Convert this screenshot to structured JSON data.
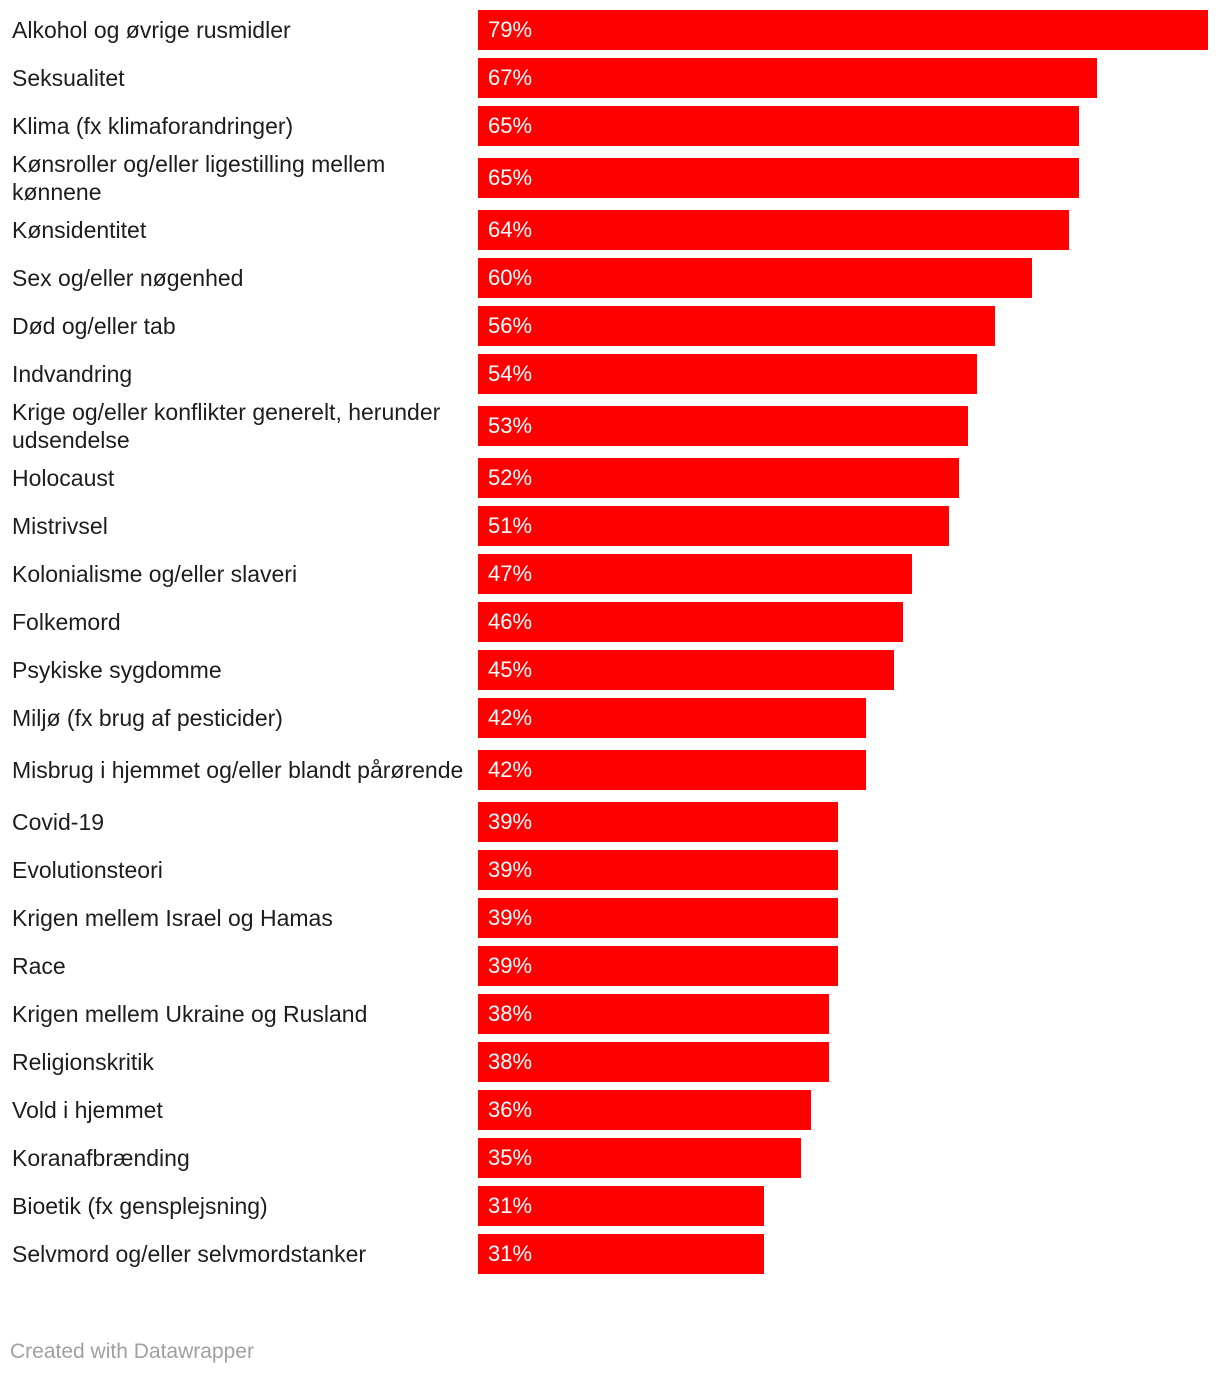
{
  "chart_data": {
    "type": "bar",
    "orientation": "horizontal",
    "categories": [
      "Alkohol og øvrige rusmidler",
      "Seksualitet",
      "Klima (fx klimaforandringer)",
      "Kønsroller og/eller ligestilling mellem kønnene",
      "Kønsidentitet",
      "Sex og/eller nøgenhed",
      "Død og/eller tab",
      "Indvandring",
      "Krige og/eller konflikter generelt, herunder udsendelse",
      "Holocaust",
      "Mistrivsel",
      "Kolonialisme og/eller slaveri",
      "Folkemord",
      "Psykiske sygdomme",
      "Miljø (fx brug af pesticider)",
      "Misbrug i hjemmet og/eller blandt pårørende",
      "Covid-19",
      "Evolutionsteori",
      "Krigen mellem Israel og Hamas",
      "Race",
      "Krigen mellem Ukraine og Rusland",
      "Religionskritik",
      "Vold i hjemmet",
      "Koranafbrænding",
      "Bioetik (fx gensplejsning)",
      "Selvmord og/eller selvmordstanker"
    ],
    "values": [
      79,
      67,
      65,
      65,
      64,
      60,
      56,
      54,
      53,
      52,
      51,
      47,
      46,
      45,
      42,
      42,
      39,
      39,
      39,
      39,
      38,
      38,
      36,
      35,
      31,
      31
    ],
    "value_labels": [
      "79%",
      "67%",
      "65%",
      "65%",
      "64%",
      "60%",
      "56%",
      "54%",
      "53%",
      "52%",
      "51%",
      "47%",
      "46%",
      "45%",
      "42%",
      "42%",
      "39%",
      "39%",
      "39%",
      "39%",
      "38%",
      "38%",
      "36%",
      "35%",
      "31%",
      "31%"
    ],
    "xlim": [
      0,
      79
    ],
    "bar_color": "#ff0000",
    "value_label_color": "#ffffff",
    "grid": false,
    "title": "",
    "xlabel": "",
    "ylabel": ""
  },
  "footer": {
    "credit": "Created with Datawrapper"
  }
}
